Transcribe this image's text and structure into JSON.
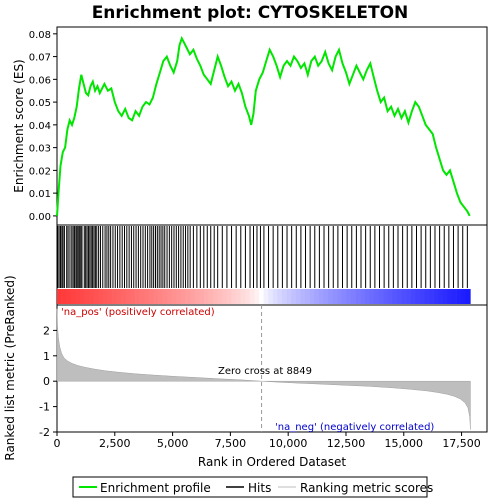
{
  "chart_data": [
    {
      "type": "line",
      "title": "Enrichment plot: CYTOSKELETON",
      "ylabel": "Enrichment score (ES)",
      "ylim": [
        -0.004,
        0.083
      ],
      "xlim": [
        0,
        18600
      ],
      "yticks": [
        "0.00",
        "0.01",
        "0.02",
        "0.03",
        "0.04",
        "0.05",
        "0.06",
        "0.07",
        "0.08"
      ],
      "ytick_values": [
        0,
        0.01,
        0.02,
        0.03,
        0.04,
        0.05,
        0.06,
        0.07,
        0.08
      ],
      "color": "#00e600",
      "series": [
        {
          "name": "Enrichment profile",
          "x": [
            0,
            80,
            150,
            250,
            350,
            450,
            550,
            650,
            750,
            850,
            950,
            1050,
            1150,
            1250,
            1350,
            1450,
            1550,
            1650,
            1750,
            1850,
            1950,
            2050,
            2200,
            2350,
            2500,
            2650,
            2800,
            2950,
            3100,
            3250,
            3400,
            3550,
            3700,
            3850,
            4000,
            4150,
            4300,
            4450,
            4600,
            4750,
            4900,
            5050,
            5200,
            5300,
            5400,
            5500,
            5600,
            5750,
            5900,
            6050,
            6200,
            6350,
            6500,
            6650,
            6800,
            6950,
            7100,
            7250,
            7400,
            7550,
            7700,
            7850,
            8000,
            8150,
            8300,
            8400,
            8500,
            8600,
            8750,
            8900,
            9050,
            9200,
            9350,
            9500,
            9650,
            9800,
            9950,
            10100,
            10250,
            10400,
            10550,
            10700,
            10850,
            11000,
            11150,
            11300,
            11450,
            11600,
            11750,
            11900,
            12050,
            12200,
            12350,
            12500,
            12650,
            12800,
            12950,
            13100,
            13250,
            13400,
            13550,
            13700,
            13850,
            14000,
            14150,
            14300,
            14450,
            14600,
            14750,
            14900,
            15050,
            15200,
            15350,
            15500,
            15650,
            15800,
            15950,
            16100,
            16250,
            16400,
            16550,
            16700,
            16850,
            17000,
            17150,
            17300,
            17450,
            17600,
            17750,
            17850
          ],
          "values": [
            0.0,
            0.012,
            0.022,
            0.028,
            0.03,
            0.038,
            0.042,
            0.04,
            0.043,
            0.048,
            0.056,
            0.062,
            0.058,
            0.054,
            0.053,
            0.057,
            0.059,
            0.055,
            0.057,
            0.054,
            0.056,
            0.058,
            0.055,
            0.056,
            0.05,
            0.046,
            0.044,
            0.047,
            0.043,
            0.042,
            0.046,
            0.044,
            0.048,
            0.05,
            0.049,
            0.052,
            0.058,
            0.063,
            0.068,
            0.07,
            0.066,
            0.063,
            0.068,
            0.075,
            0.078,
            0.076,
            0.074,
            0.071,
            0.073,
            0.069,
            0.066,
            0.062,
            0.06,
            0.058,
            0.064,
            0.07,
            0.066,
            0.061,
            0.057,
            0.059,
            0.055,
            0.058,
            0.054,
            0.048,
            0.044,
            0.04,
            0.045,
            0.055,
            0.06,
            0.063,
            0.068,
            0.073,
            0.07,
            0.066,
            0.061,
            0.066,
            0.068,
            0.066,
            0.07,
            0.068,
            0.065,
            0.067,
            0.062,
            0.068,
            0.07,
            0.066,
            0.068,
            0.072,
            0.067,
            0.064,
            0.07,
            0.073,
            0.067,
            0.063,
            0.058,
            0.062,
            0.066,
            0.063,
            0.06,
            0.064,
            0.067,
            0.061,
            0.055,
            0.05,
            0.052,
            0.046,
            0.048,
            0.044,
            0.047,
            0.043,
            0.046,
            0.041,
            0.046,
            0.05,
            0.048,
            0.044,
            0.04,
            0.038,
            0.036,
            0.03,
            0.025,
            0.02,
            0.018,
            0.02,
            0.015,
            0.01,
            0.006,
            0.004,
            0.002,
            0.0
          ]
        }
      ]
    },
    {
      "type": "rug",
      "name": "Hits",
      "hit_positions": [
        30,
        90,
        150,
        210,
        260,
        320,
        420,
        480,
        560,
        640,
        700,
        760,
        820,
        870,
        920,
        980,
        1030,
        1080,
        1180,
        1240,
        1300,
        1360,
        1420,
        1480,
        1540,
        1600,
        1660,
        1720,
        1800,
        1880,
        1980,
        2080,
        2160,
        2240,
        2320,
        2420,
        2520,
        2620,
        2720,
        2820,
        2920,
        3020,
        3120,
        3220,
        3320,
        3420,
        3520,
        3620,
        3720,
        3820,
        3920,
        4020,
        4100,
        4180,
        4260,
        4340,
        4420,
        4500,
        4580,
        4660,
        4760,
        4860,
        4960,
        5060,
        5160,
        5260,
        5360,
        5460,
        5560,
        5660,
        5760,
        5900,
        6050,
        6200,
        6350,
        6500,
        6650,
        6800,
        6950,
        7150,
        7350,
        7550,
        7750,
        7950,
        8150,
        8350,
        8500,
        8650,
        8800,
        8950,
        9150,
        9350,
        9550,
        9750,
        9950,
        10150,
        10350,
        10550,
        10750,
        10950,
        11150,
        11350,
        11550,
        11750,
        11950,
        12150,
        12350,
        12550,
        12750,
        12950,
        13150,
        13350,
        13550,
        13750,
        13950,
        14150,
        14350,
        14550,
        14750,
        14950,
        15150,
        15350,
        15550,
        15750,
        15950,
        16150,
        16350,
        16550,
        16750,
        16950,
        17150,
        17350,
        17550,
        17750
      ]
    },
    {
      "type": "area",
      "ylabel": "Ranked list metric (PreRanked)",
      "xlabel": "Rank in Ordered Dataset",
      "ylim": [
        -2,
        3
      ],
      "yticks": [
        "-2",
        "-1",
        "0",
        "1",
        "2"
      ],
      "ytick_values": [
        -2,
        -1,
        0,
        1,
        2
      ],
      "xticks": [
        "0",
        "2,500",
        "5,000",
        "7,500",
        "10,000",
        "12,500",
        "15,000",
        "17,500"
      ],
      "xtick_values": [
        0,
        2500,
        5000,
        7500,
        10000,
        12500,
        15000,
        17500
      ],
      "pos_label": "'na_pos' (positively correlated)",
      "neg_label": "'na_neg' (negatively correlated)",
      "zero_cross_label": "Zero cross at 8849",
      "zero_cross": 8849,
      "series": [
        {
          "name": "Ranking metric scores",
          "x": [
            0,
            20,
            60,
            120,
            200,
            300,
            450,
            650,
            900,
            1200,
            1600,
            2100,
            2700,
            3400,
            4200,
            5100,
            6100,
            7100,
            8000,
            8849,
            9600,
            10500,
            11500,
            12500,
            13500,
            14500,
            15300,
            16000,
            16500,
            16900,
            17200,
            17450,
            17650,
            17780,
            17850,
            17880
          ],
          "values": [
            2.85,
            2.2,
            1.7,
            1.35,
            1.1,
            0.92,
            0.8,
            0.7,
            0.62,
            0.55,
            0.48,
            0.41,
            0.35,
            0.29,
            0.24,
            0.19,
            0.14,
            0.09,
            0.05,
            0.0,
            -0.04,
            -0.08,
            -0.12,
            -0.16,
            -0.2,
            -0.26,
            -0.32,
            -0.38,
            -0.45,
            -0.52,
            -0.6,
            -0.7,
            -0.85,
            -1.05,
            -1.4,
            -1.9
          ]
        }
      ]
    }
  ],
  "legend": {
    "items": [
      {
        "label": "Enrichment profile",
        "color": "#00e600"
      },
      {
        "label": "Hits",
        "color": "#000000"
      },
      {
        "label": "Ranking metric scores",
        "color": "#bebebe"
      }
    ]
  }
}
